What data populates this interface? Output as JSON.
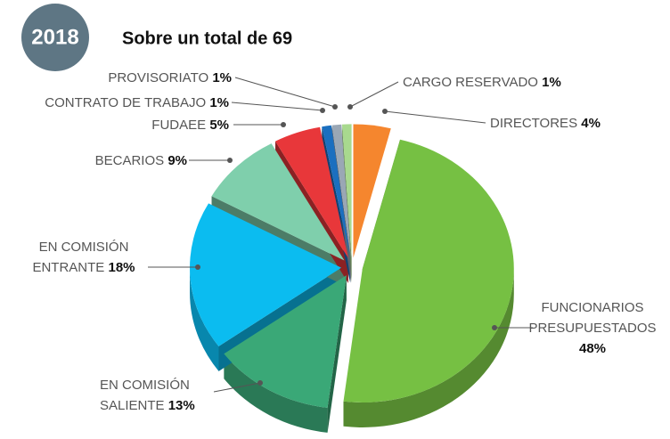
{
  "header": {
    "year": "2018"
  },
  "chart_data": {
    "type": "pie",
    "title": "Sobre un total de 69",
    "categories": [
      "DIRECTORES",
      "FUNCIONARIOS PRESUPUESTADOS",
      "EN COMISIÓN SALIENTE",
      "EN COMISIÓN ENTRANTE",
      "BECARIOS",
      "FUDAEE",
      "CONTRATO DE TRABAJO",
      "PROVISORIATO",
      "CARGO RESERVADO"
    ],
    "values": [
      4,
      48,
      13,
      18,
      9,
      5,
      1,
      1,
      1
    ],
    "value_labels": [
      "4%",
      "48%",
      "13%",
      "18%",
      "9%",
      "5%",
      "1%",
      "1%",
      "1%"
    ],
    "colors": [
      "#f5862e",
      "#76c043",
      "#3aa877",
      "#0bbcf0",
      "#7fcfac",
      "#e8373a",
      "#1b6fbf",
      "#9aa7b5",
      "#a8d98e"
    ]
  }
}
